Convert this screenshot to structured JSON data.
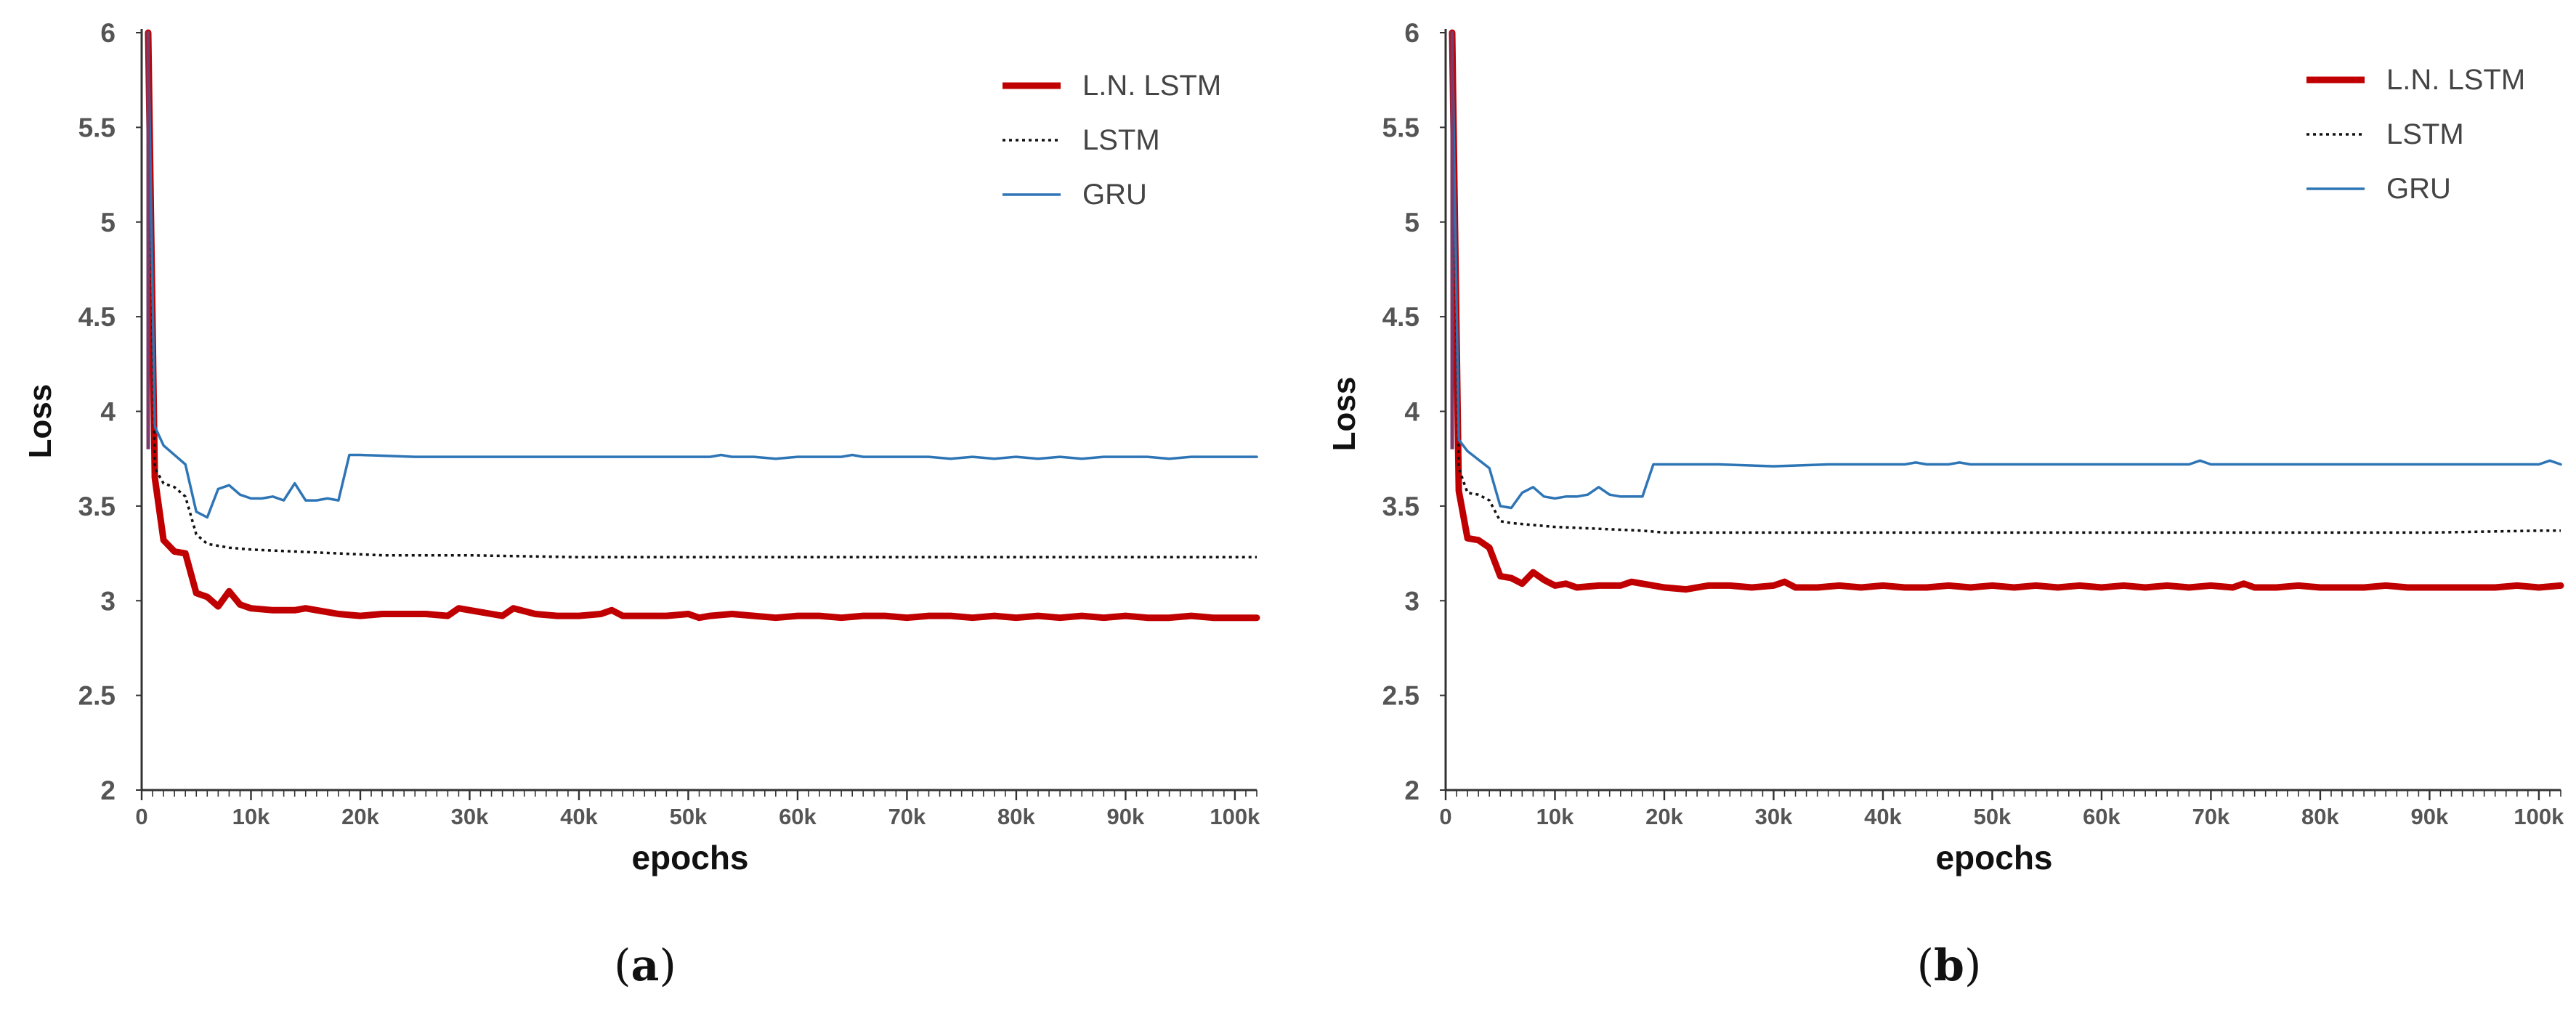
{
  "chart_data": [
    {
      "panel": "a",
      "type": "line",
      "caption_open": "(",
      "caption_letter": "a",
      "caption_close": ")",
      "title": "",
      "xlabel": "epochs",
      "ylabel": "Loss",
      "xlim": [
        0,
        102000
      ],
      "ylim": [
        2,
        6
      ],
      "xticks": [
        0,
        10000,
        20000,
        30000,
        40000,
        50000,
        60000,
        70000,
        80000,
        90000,
        100000
      ],
      "xtick_labels": [
        "0",
        "10k",
        "20k",
        "30k",
        "40k",
        "50k",
        "60k",
        "70k",
        "80k",
        "90k",
        "100k"
      ],
      "yticks": [
        2,
        2.5,
        3,
        3.5,
        4,
        4.5,
        5,
        5.5,
        6
      ],
      "ytick_labels": [
        "2",
        "2.5",
        "3",
        "3.5",
        "4",
        "4.5",
        "5",
        "5.5",
        "6"
      ],
      "grid": false,
      "legend_position": "top-right",
      "series": [
        {
          "name": "L.N. LSTM",
          "color": "#c00000",
          "style": "solid",
          "weight": "thick",
          "x": [
            600,
            1200,
            2000,
            3000,
            4000,
            5000,
            6000,
            7000,
            8000,
            9000,
            10000,
            12000,
            14000,
            15000,
            16000,
            18000,
            20000,
            22000,
            24000,
            26000,
            28000,
            29000,
            30000,
            32000,
            33000,
            34000,
            36000,
            38000,
            40000,
            42000,
            43000,
            44000,
            46000,
            48000,
            50000,
            51000,
            52000,
            54000,
            56000,
            58000,
            60000,
            62000,
            64000,
            66000,
            68000,
            70000,
            72000,
            74000,
            76000,
            78000,
            80000,
            82000,
            84000,
            86000,
            88000,
            90000,
            92000,
            94000,
            96000,
            98000,
            100000,
            102000
          ],
          "y": [
            6.0,
            3.65,
            3.32,
            3.26,
            3.25,
            3.04,
            3.02,
            2.97,
            3.05,
            2.98,
            2.96,
            2.95,
            2.95,
            2.96,
            2.95,
            2.93,
            2.92,
            2.93,
            2.93,
            2.93,
            2.92,
            2.96,
            2.95,
            2.93,
            2.92,
            2.96,
            2.93,
            2.92,
            2.92,
            2.93,
            2.95,
            2.92,
            2.92,
            2.92,
            2.93,
            2.91,
            2.92,
            2.93,
            2.92,
            2.91,
            2.92,
            2.92,
            2.91,
            2.92,
            2.92,
            2.91,
            2.92,
            2.92,
            2.91,
            2.92,
            2.91,
            2.92,
            2.91,
            2.92,
            2.91,
            2.92,
            2.91,
            2.91,
            2.92,
            2.91,
            2.91,
            2.91
          ]
        },
        {
          "name": "LSTM",
          "color": "#111111",
          "style": "dotted",
          "weight": "normal",
          "x": [
            600,
            1200,
            2000,
            3000,
            4000,
            5000,
            6000,
            8000,
            10000,
            14000,
            18000,
            22000,
            30000,
            40000,
            50000,
            60000,
            70000,
            80000,
            90000,
            100000,
            102000
          ],
          "y": [
            5.9,
            3.7,
            3.62,
            3.6,
            3.55,
            3.35,
            3.3,
            3.28,
            3.27,
            3.26,
            3.25,
            3.24,
            3.24,
            3.23,
            3.23,
            3.23,
            3.23,
            3.23,
            3.23,
            3.23,
            3.23
          ]
        },
        {
          "name": "GRU",
          "color": "#2e75b6",
          "style": "solid",
          "weight": "normal",
          "x": [
            600,
            1200,
            2000,
            4000,
            5000,
            6000,
            7000,
            8000,
            9000,
            10000,
            11000,
            12000,
            13000,
            14000,
            15000,
            16000,
            17000,
            18000,
            19000,
            20000,
            25000,
            30000,
            40000,
            50000,
            52000,
            53000,
            54000,
            56000,
            58000,
            60000,
            62000,
            64000,
            65000,
            66000,
            68000,
            70000,
            72000,
            74000,
            76000,
            78000,
            80000,
            82000,
            84000,
            86000,
            88000,
            90000,
            92000,
            94000,
            96000,
            98000,
            100000,
            102000
          ],
          "y": [
            6.0,
            3.92,
            3.82,
            3.72,
            3.47,
            3.44,
            3.59,
            3.61,
            3.56,
            3.54,
            3.54,
            3.55,
            3.53,
            3.62,
            3.53,
            3.53,
            3.54,
            3.53,
            3.77,
            3.77,
            3.76,
            3.76,
            3.76,
            3.76,
            3.76,
            3.77,
            3.76,
            3.76,
            3.75,
            3.76,
            3.76,
            3.76,
            3.77,
            3.76,
            3.76,
            3.76,
            3.76,
            3.75,
            3.76,
            3.75,
            3.76,
            3.75,
            3.76,
            3.75,
            3.76,
            3.76,
            3.76,
            3.75,
            3.76,
            3.76,
            3.76,
            3.76
          ]
        }
      ]
    },
    {
      "panel": "b",
      "type": "line",
      "caption_open": "(",
      "caption_letter": "b",
      "caption_close": ")",
      "title": "",
      "xlabel": "epochs",
      "ylabel": "Loss",
      "xlim": [
        0,
        102000
      ],
      "ylim": [
        2,
        6
      ],
      "xticks": [
        0,
        10000,
        20000,
        30000,
        40000,
        50000,
        60000,
        70000,
        80000,
        90000,
        100000
      ],
      "xtick_labels": [
        "0",
        "10k",
        "20k",
        "30k",
        "40k",
        "50k",
        "60k",
        "70k",
        "80k",
        "90k",
        "100k"
      ],
      "yticks": [
        2,
        2.5,
        3,
        3.5,
        4,
        4.5,
        5,
        5.5,
        6
      ],
      "ytick_labels": [
        "2",
        "2.5",
        "3",
        "3.5",
        "4",
        "4.5",
        "5",
        "5.5",
        "6"
      ],
      "grid": false,
      "legend_position": "top-right",
      "series": [
        {
          "name": "L.N. LSTM",
          "color": "#c00000",
          "style": "solid",
          "weight": "thick",
          "x": [
            600,
            1200,
            2000,
            3000,
            4000,
            5000,
            6000,
            7000,
            8000,
            9000,
            10000,
            11000,
            12000,
            14000,
            16000,
            17000,
            18000,
            20000,
            22000,
            24000,
            26000,
            28000,
            30000,
            31000,
            32000,
            34000,
            36000,
            38000,
            40000,
            42000,
            44000,
            46000,
            48000,
            50000,
            52000,
            54000,
            56000,
            58000,
            60000,
            62000,
            64000,
            66000,
            68000,
            70000,
            72000,
            73000,
            74000,
            76000,
            78000,
            80000,
            82000,
            84000,
            86000,
            88000,
            90000,
            92000,
            94000,
            96000,
            98000,
            100000,
            102000
          ],
          "y": [
            6.0,
            3.58,
            3.33,
            3.32,
            3.28,
            3.13,
            3.12,
            3.09,
            3.15,
            3.11,
            3.08,
            3.09,
            3.07,
            3.08,
            3.08,
            3.1,
            3.09,
            3.07,
            3.06,
            3.08,
            3.08,
            3.07,
            3.08,
            3.1,
            3.07,
            3.07,
            3.08,
            3.07,
            3.08,
            3.07,
            3.07,
            3.08,
            3.07,
            3.08,
            3.07,
            3.08,
            3.07,
            3.08,
            3.07,
            3.08,
            3.07,
            3.08,
            3.07,
            3.08,
            3.07,
            3.09,
            3.07,
            3.07,
            3.08,
            3.07,
            3.07,
            3.07,
            3.08,
            3.07,
            3.07,
            3.07,
            3.07,
            3.07,
            3.08,
            3.07,
            3.08
          ]
        },
        {
          "name": "LSTM",
          "color": "#111111",
          "style": "dotted",
          "weight": "normal",
          "x": [
            600,
            1200,
            2000,
            3000,
            4000,
            5000,
            6000,
            8000,
            10000,
            14000,
            18000,
            20000,
            30000,
            40000,
            50000,
            60000,
            70000,
            80000,
            90000,
            100000,
            102000
          ],
          "y": [
            5.9,
            3.7,
            3.57,
            3.56,
            3.53,
            3.42,
            3.41,
            3.4,
            3.39,
            3.38,
            3.37,
            3.36,
            3.36,
            3.36,
            3.36,
            3.36,
            3.36,
            3.36,
            3.36,
            3.37,
            3.37
          ]
        },
        {
          "name": "GRU",
          "color": "#2e75b6",
          "style": "solid",
          "weight": "normal",
          "x": [
            600,
            1200,
            2000,
            4000,
            5000,
            6000,
            7000,
            8000,
            9000,
            10000,
            11000,
            12000,
            13000,
            14000,
            15000,
            16000,
            17000,
            18000,
            19000,
            20000,
            25000,
            30000,
            35000,
            40000,
            42000,
            43000,
            44000,
            46000,
            47000,
            48000,
            50000,
            55000,
            60000,
            65000,
            68000,
            69000,
            70000,
            75000,
            80000,
            85000,
            90000,
            95000,
            98000,
            100000,
            101000,
            102000
          ],
          "y": [
            6.0,
            3.85,
            3.79,
            3.7,
            3.5,
            3.49,
            3.57,
            3.6,
            3.55,
            3.54,
            3.55,
            3.55,
            3.56,
            3.6,
            3.56,
            3.55,
            3.55,
            3.55,
            3.72,
            3.72,
            3.72,
            3.71,
            3.72,
            3.72,
            3.72,
            3.73,
            3.72,
            3.72,
            3.73,
            3.72,
            3.72,
            3.72,
            3.72,
            3.72,
            3.72,
            3.74,
            3.72,
            3.72,
            3.72,
            3.72,
            3.72,
            3.72,
            3.72,
            3.72,
            3.74,
            3.72
          ]
        }
      ]
    }
  ]
}
